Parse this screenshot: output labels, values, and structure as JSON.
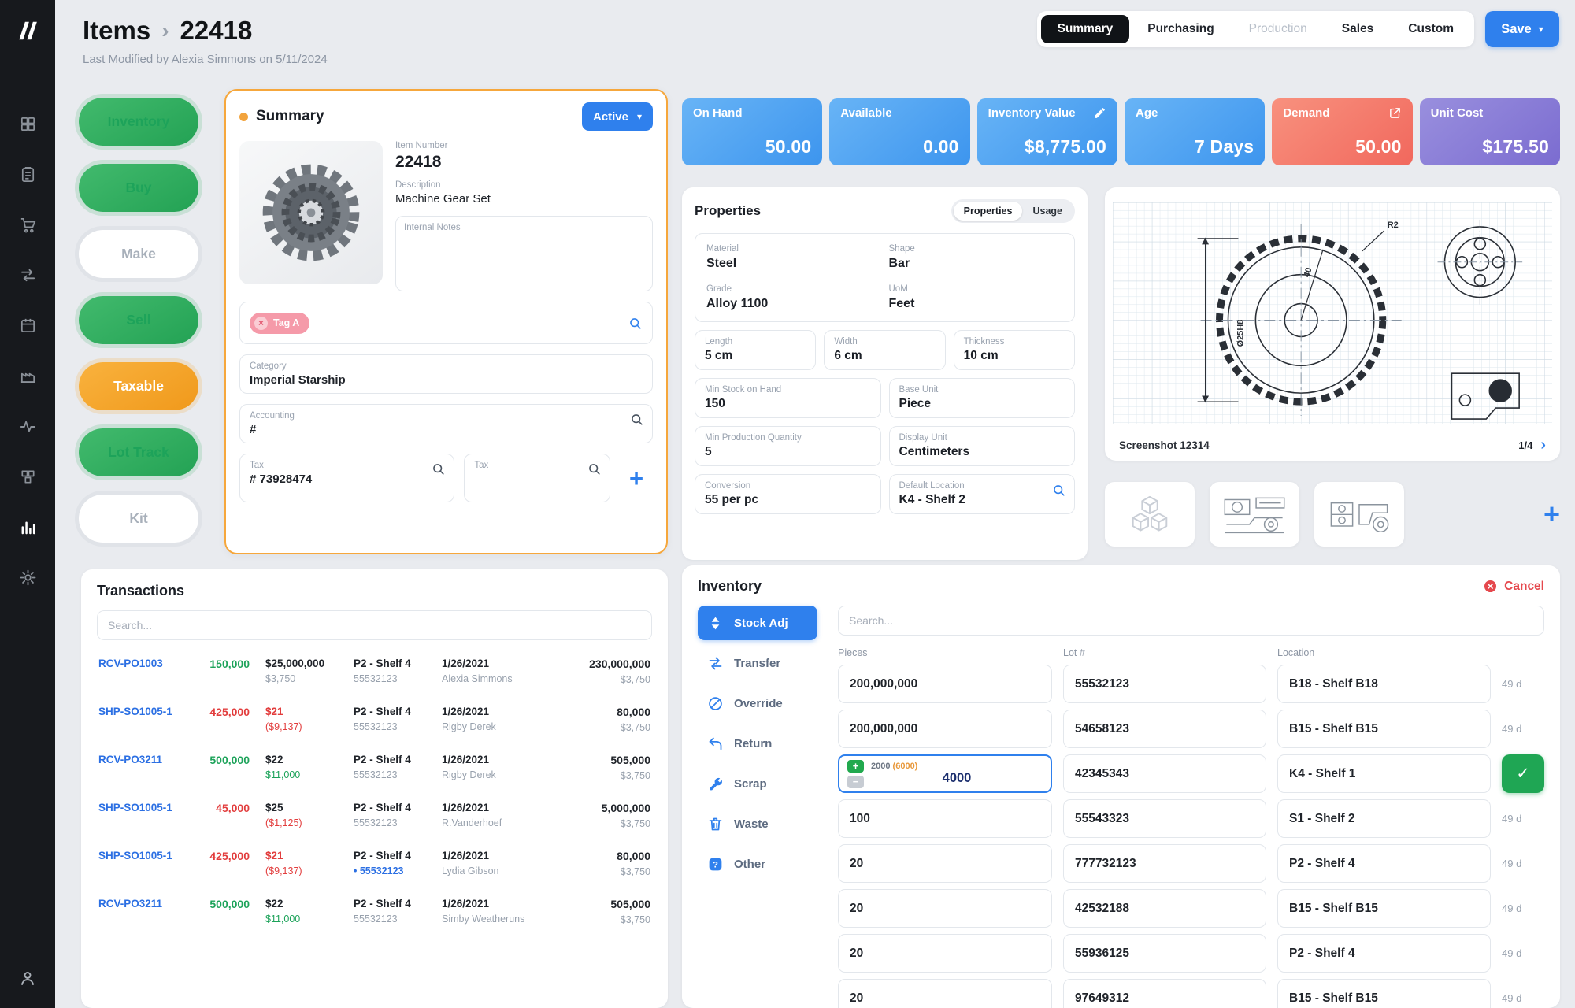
{
  "colors": {
    "accent_blue": "#2f80ed",
    "kpi_blue": "#4a9ef0",
    "kpi_salmon": "#f3756a",
    "kpi_purple": "#8678d6",
    "positive_green": "#1da35a",
    "negative_red": "#e23d3d",
    "warning_orange": "#f2a33c",
    "sidebar_dark": "#17191d"
  },
  "icons": {
    "chevron_down": "▾",
    "chevron_right": "›",
    "plus": "+",
    "minus": "−",
    "check": "✓",
    "close": "×"
  },
  "header": {
    "breadcrumb_root": "Items",
    "item_id": "22418",
    "last_modified": "Last Modified by Alexia Simmons on 5/11/2024",
    "tabs": [
      {
        "label": "Summary",
        "state": "active"
      },
      {
        "label": "Purchasing",
        "state": "normal"
      },
      {
        "label": "Production",
        "state": "disabled"
      },
      {
        "label": "Sales",
        "state": "normal"
      },
      {
        "label": "Custom",
        "state": "normal"
      }
    ],
    "save_label": "Save"
  },
  "status_pills": [
    {
      "label": "Inventory",
      "theme": "green"
    },
    {
      "label": "Buy",
      "theme": "green"
    },
    {
      "label": "Make",
      "theme": "off"
    },
    {
      "label": "Sell",
      "theme": "green"
    },
    {
      "label": "Taxable",
      "theme": "orange"
    },
    {
      "label": "Lot Track",
      "theme": "green"
    },
    {
      "label": "Kit",
      "theme": "off"
    }
  ],
  "summary": {
    "title": "Summary",
    "status": "Active",
    "item_number_label": "Item Number",
    "item_number": "22418",
    "description_label": "Description",
    "description": "Machine Gear Set",
    "internal_notes_label": "Internal Notes",
    "tag": "Tag A",
    "category_label": "Category",
    "category": "Imperial Starship",
    "accounting_label": "Accounting",
    "accounting_value": "#",
    "tax1_label": "Tax",
    "tax1_value": "# 73928474",
    "tax2_label": "Tax"
  },
  "kpis": [
    {
      "label": "On Hand",
      "value": "50.00",
      "theme": "blue"
    },
    {
      "label": "Available",
      "value": "0.00",
      "theme": "blue"
    },
    {
      "label": "Inventory Value",
      "value": "$8,775.00",
      "theme": "blue",
      "icon": "pencil"
    },
    {
      "label": "Age",
      "value": "7 Days",
      "theme": "blue"
    },
    {
      "label": "Demand",
      "value": "50.00",
      "theme": "salmon",
      "icon": "external"
    },
    {
      "label": "Unit Cost",
      "value": "$175.50",
      "theme": "purple"
    }
  ],
  "properties": {
    "title": "Properties",
    "toggle": [
      "Properties",
      "Usage"
    ],
    "main_fields": [
      {
        "label": "Material",
        "value": "Steel"
      },
      {
        "label": "Shape",
        "value": "Bar"
      },
      {
        "label": "Grade",
        "value": "Alloy 1100"
      },
      {
        "label": "UoM",
        "value": "Feet"
      }
    ],
    "dim_fields": [
      {
        "label": "Length",
        "value": "5 cm"
      },
      {
        "label": "Width",
        "value": "6 cm"
      },
      {
        "label": "Thickness",
        "value": "10 cm"
      }
    ],
    "pair_rows": [
      [
        {
          "label": "Min Stock on Hand",
          "value": "150"
        },
        {
          "label": "Base Unit",
          "value": "Piece"
        }
      ],
      [
        {
          "label": "Min Production Quantity",
          "value": "5"
        },
        {
          "label": "Display Unit",
          "value": "Centimeters"
        }
      ],
      [
        {
          "label": "Conversion",
          "value": "55 per pc"
        },
        {
          "label": "Default Location",
          "value": "K4 - Shelf 2",
          "icon": "search"
        }
      ]
    ]
  },
  "drawing": {
    "caption": "Screenshot 12314",
    "page": "1/4",
    "labels": {
      "r2": "R2",
      "forty": "40",
      "dia": "Ø25H8"
    }
  },
  "transactions": {
    "title": "Transactions",
    "search_placeholder": "Search...",
    "rows": [
      {
        "id": "RCV-PO1003",
        "qty": "150,000",
        "qty_class": "green",
        "amount": "$25,000,000",
        "amount_class": "dark",
        "amount_sub": "$3,750",
        "amount_sub_class": "gray",
        "shelf": "P2 - Shelf 4",
        "lot": "55532123",
        "lot_class": "gray",
        "date": "1/26/2021",
        "person": "Alexia Simmons",
        "total": "230,000,000",
        "total_sub": "$3,750"
      },
      {
        "id": "SHP-SO1005-1",
        "qty": "425,000",
        "qty_class": "red",
        "amount": "$21",
        "amount_class": "red",
        "amount_sub": "($9,137)",
        "amount_sub_class": "red",
        "shelf": "P2 - Shelf 4",
        "lot": "55532123",
        "lot_class": "gray",
        "date": "1/26/2021",
        "person": "Rigby Derek",
        "total": "80,000",
        "total_sub": "$3,750"
      },
      {
        "id": "RCV-PO3211",
        "qty": "500,000",
        "qty_class": "green",
        "amount": "$22",
        "amount_class": "dark",
        "amount_sub": "$11,000",
        "amount_sub_class": "green",
        "shelf": "P2 - Shelf 4",
        "lot": "55532123",
        "lot_class": "gray",
        "date": "1/26/2021",
        "person": "Rigby Derek",
        "total": "505,000",
        "total_sub": "$3,750"
      },
      {
        "id": "SHP-SO1005-1",
        "qty": "45,000",
        "qty_class": "red",
        "amount": "$25",
        "amount_class": "dark",
        "amount_sub": "($1,125)",
        "amount_sub_class": "red",
        "shelf": "P2 - Shelf 4",
        "lot": "55532123",
        "lot_class": "gray",
        "date": "1/26/2021",
        "person": "R.Vanderhoef",
        "total": "5,000,000",
        "total_sub": "$3,750"
      },
      {
        "id": "SHP-SO1005-1",
        "qty": "425,000",
        "qty_class": "red",
        "amount": "$21",
        "amount_class": "red",
        "amount_sub": "($9,137)",
        "amount_sub_class": "red",
        "shelf": "P2 - Shelf 4",
        "lot": "55532123",
        "lot_class": "link",
        "date": "1/26/2021",
        "person": "Lydia Gibson",
        "total": "80,000",
        "total_sub": "$3,750"
      },
      {
        "id": "RCV-PO3211",
        "qty": "500,000",
        "qty_class": "green",
        "amount": "$22",
        "amount_class": "dark",
        "amount_sub": "$11,000",
        "amount_sub_class": "green",
        "shelf": "P2 - Shelf 4",
        "lot": "55532123",
        "lot_class": "gray",
        "date": "1/26/2021",
        "person": "Simby Weatheruns",
        "total": "505,000",
        "total_sub": "$3,750"
      }
    ]
  },
  "inventory": {
    "title": "Inventory",
    "cancel_label": "Cancel",
    "search_placeholder": "Search...",
    "columns": [
      "Pieces",
      "Lot #",
      "Location"
    ],
    "actions": [
      {
        "label": "Stock Adj",
        "icon": "stock-adj",
        "state": "active"
      },
      {
        "label": "Transfer",
        "icon": "transfer",
        "state": "normal"
      },
      {
        "label": "Override",
        "icon": "override",
        "state": "normal"
      },
      {
        "label": "Return",
        "icon": "return",
        "state": "normal"
      },
      {
        "label": "Scrap",
        "icon": "scrap",
        "state": "normal"
      },
      {
        "label": "Waste",
        "icon": "waste",
        "state": "normal"
      },
      {
        "label": "Other",
        "icon": "other",
        "state": "normal"
      }
    ],
    "rows": [
      {
        "pieces": "200,000,000",
        "lot": "55532123",
        "location": "B18 - Shelf B18",
        "age": "49 d"
      },
      {
        "pieces": "200,000,000",
        "lot": "54658123",
        "location": "B15 - Shelf B15",
        "age": "49 d"
      },
      {
        "type": "editing",
        "adj_current": "2000",
        "adj_paren": "(6000)",
        "adj_value": "4000",
        "lot": "42345343",
        "location": "K4 - Shelf 1"
      },
      {
        "pieces": "100",
        "lot": "55543323",
        "location": "S1 - Shelf 2",
        "age": "49 d"
      },
      {
        "pieces": "20",
        "lot": "777732123",
        "location": "P2 - Shelf 4",
        "age": "49 d"
      },
      {
        "pieces": "20",
        "lot": "42532188",
        "location": "B15 - Shelf B15",
        "age": "49 d"
      },
      {
        "pieces": "20",
        "lot": "55936125",
        "location": "P2 - Shelf 4",
        "age": "49 d"
      },
      {
        "pieces": "20",
        "lot": "97649312",
        "location": "B15 - Shelf B15",
        "age": "49 d"
      }
    ]
  }
}
